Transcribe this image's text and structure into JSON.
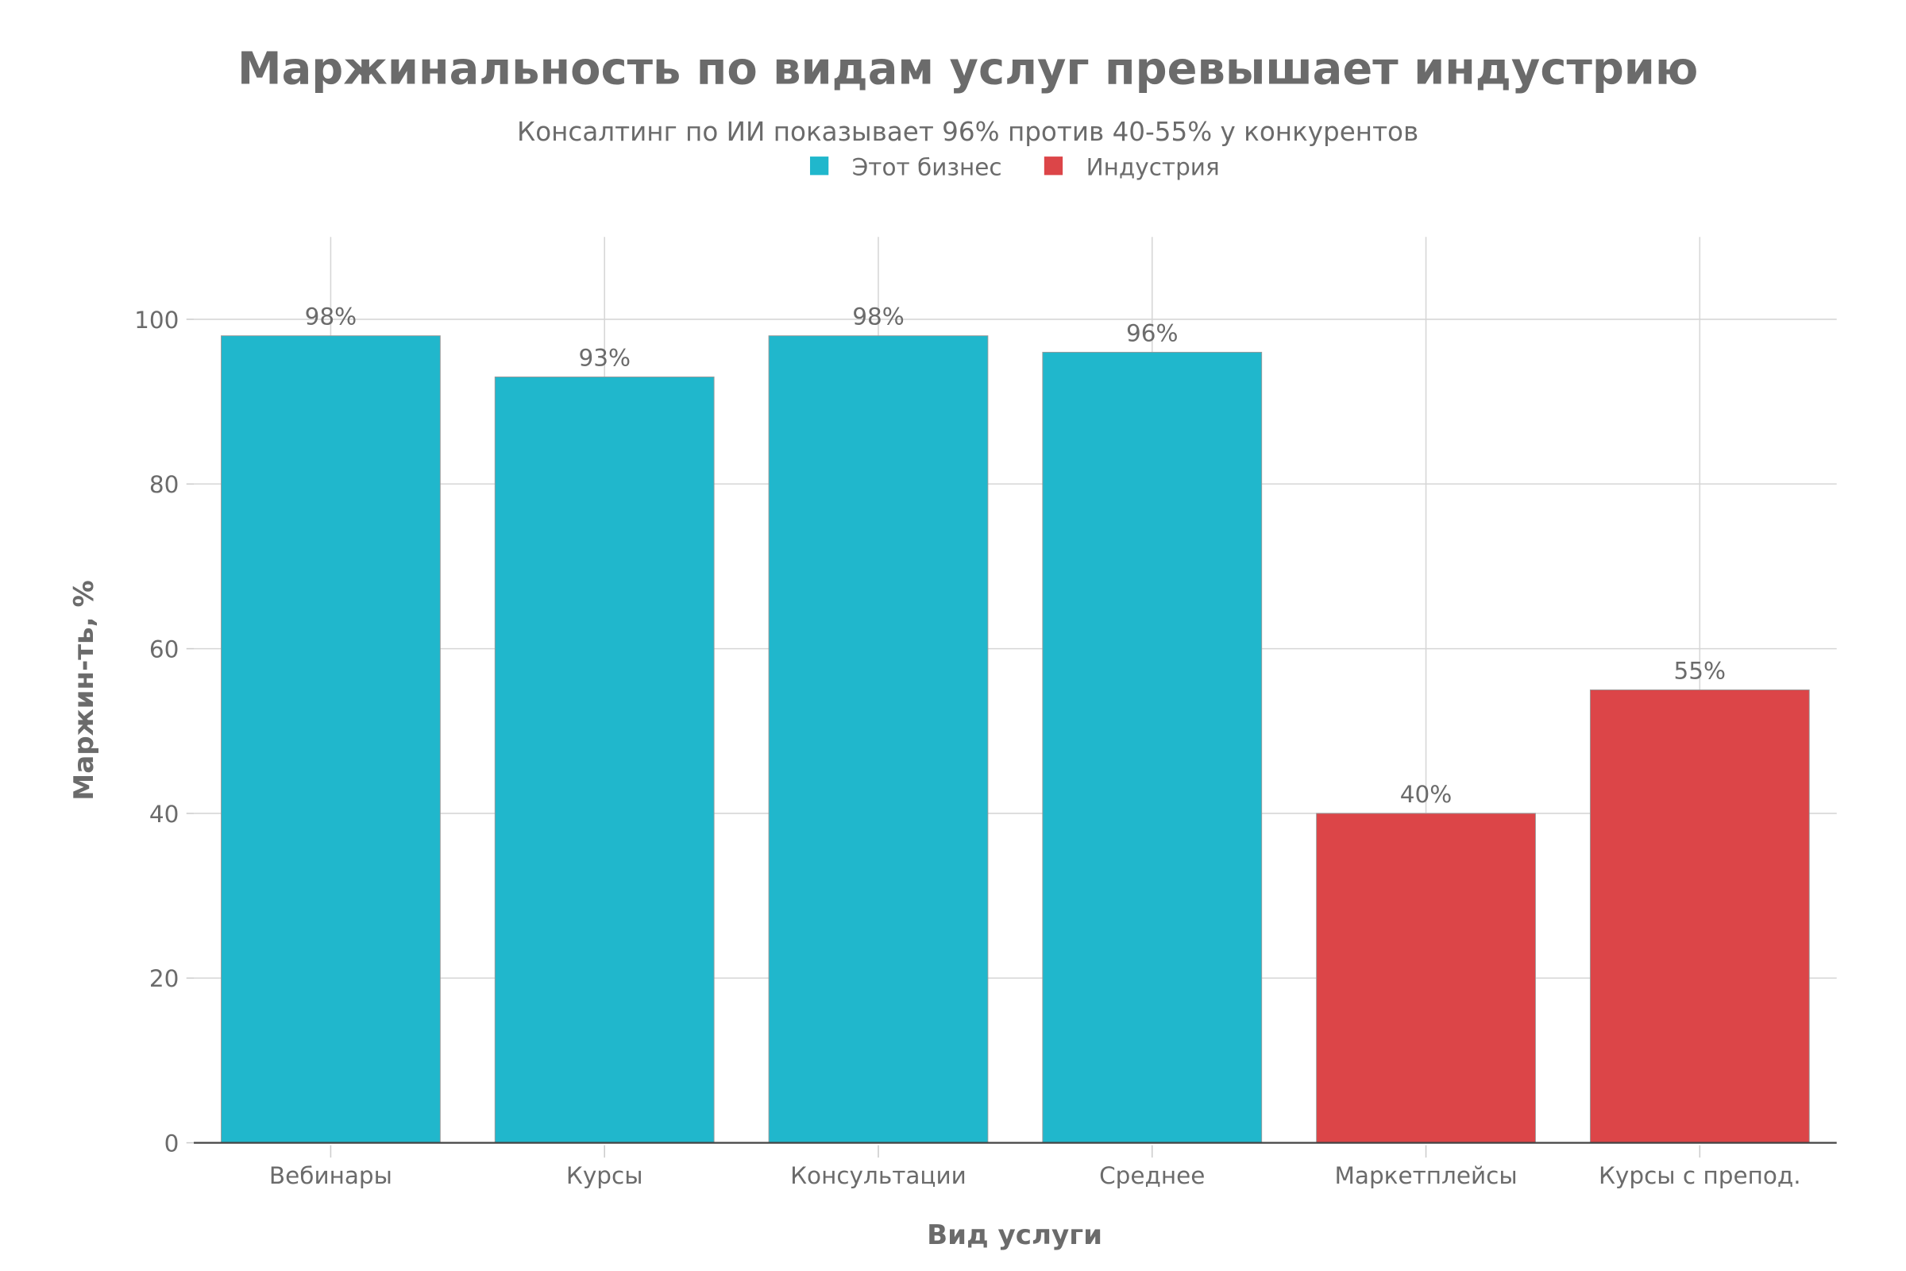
{
  "chart_data": {
    "type": "bar",
    "title": "Маржинальность по видам услуг превышает индустрию",
    "subtitle": "Консалтинг по ИИ показывает 96% против 40-55% у конкурентов",
    "xlabel": "Вид услуги",
    "ylabel": "Маржин-ть, %",
    "ylim": [
      0,
      110
    ],
    "yticks": [
      0,
      20,
      40,
      60,
      80,
      100
    ],
    "grid": true,
    "legend_placement": "top-center",
    "legend": [
      {
        "name": "Этот бизнес",
        "color": "#20b7cc"
      },
      {
        "name": "Индустрия",
        "color": "#dc4548"
      }
    ],
    "categories": [
      "Вебинары",
      "Курсы",
      "Консультации",
      "Среднее",
      "Маркетплейсы",
      "Курсы с препод."
    ],
    "values": [
      98,
      93,
      98,
      96,
      40,
      55
    ],
    "series_of_bar": [
      "Этот бизнес",
      "Этот бизнес",
      "Этот бизнес",
      "Этот бизнес",
      "Индустрия",
      "Индустрия"
    ],
    "data_labels": [
      "98%",
      "93%",
      "98%",
      "96%",
      "40%",
      "55%"
    ]
  }
}
